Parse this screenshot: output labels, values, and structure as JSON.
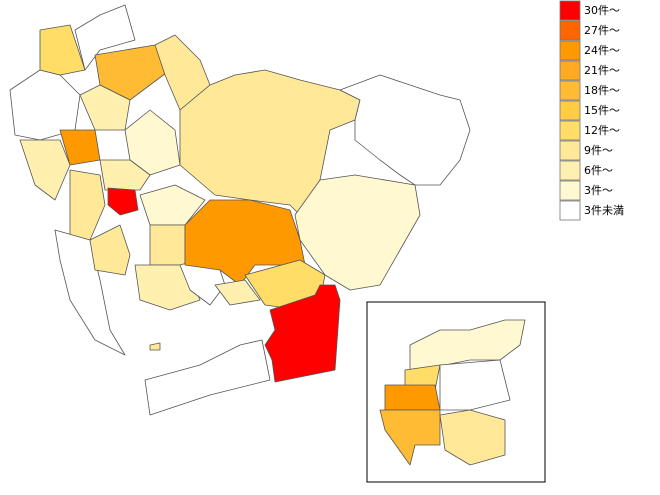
{
  "legend": {
    "items": [
      {
        "label": "30件～",
        "color": "#ff0000"
      },
      {
        "label": "27件～",
        "color": "#ff6600"
      },
      {
        "label": "24件～",
        "color": "#ff9900"
      },
      {
        "label": "21件～",
        "color": "#ffaa22"
      },
      {
        "label": "18件～",
        "color": "#ffbb33"
      },
      {
        "label": "15件～",
        "color": "#ffcc44"
      },
      {
        "label": "12件～",
        "color": "#ffdd66"
      },
      {
        "label": "9件～",
        "color": "#ffe999"
      },
      {
        "label": "6件～",
        "color": "#fff0b0"
      },
      {
        "label": "3件～",
        "color": "#fff8d0"
      },
      {
        "label": "3件未満",
        "color": "#ffffff"
      }
    ]
  }
}
